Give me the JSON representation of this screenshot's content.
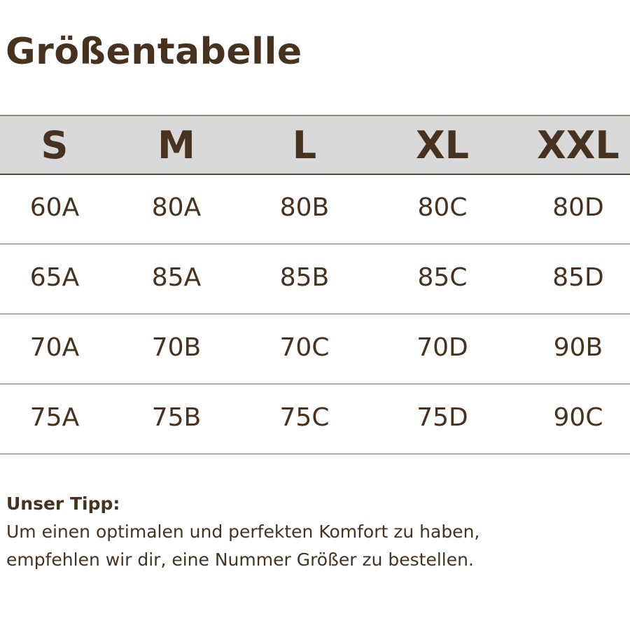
{
  "title": "Größentabelle",
  "headers": [
    "S",
    "M",
    "L",
    "XL",
    "XXL"
  ],
  "rows": [
    [
      "60A",
      "80A",
      "80B",
      "80C",
      "80D"
    ],
    [
      "65A",
      "85A",
      "85B",
      "85C",
      "85D"
    ],
    [
      "70A",
      "70B",
      "70C",
      "70D",
      "90B"
    ],
    [
      "75A",
      "75B",
      "75C",
      "75D",
      "90C"
    ]
  ],
  "tip": {
    "heading": "Unser Tipp:",
    "line1": "Um einen optimalen und perfekten Komfort zu haben,",
    "line2": "empfehlen wir dir, eine Nummer Größer zu bestellen."
  },
  "colors": {
    "text": "#46321f",
    "header_bg": "#d9d9d9"
  }
}
